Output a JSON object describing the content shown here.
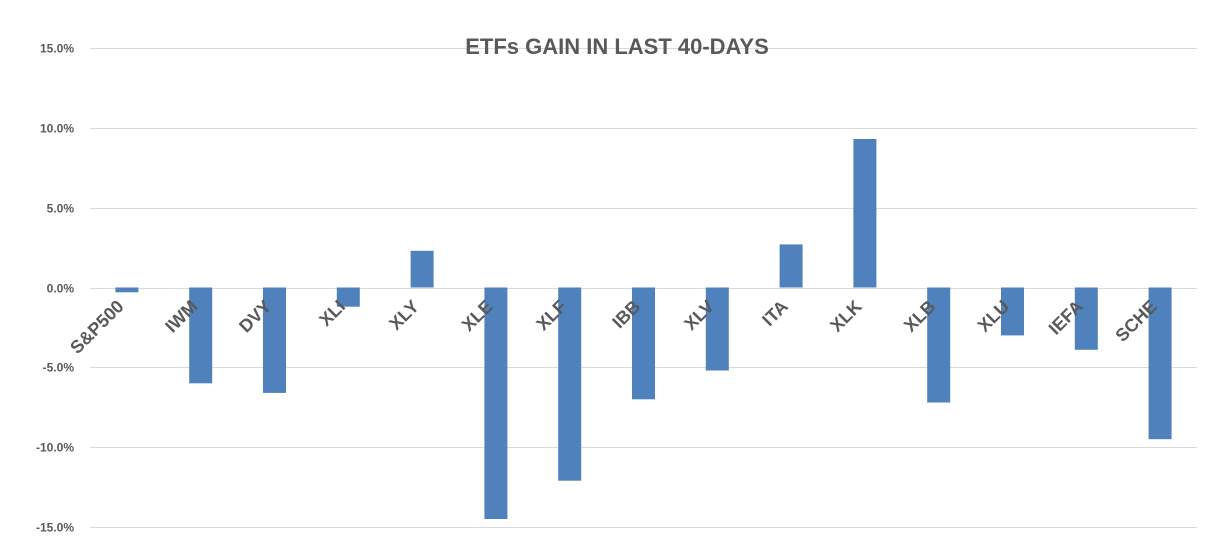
{
  "chart_data": {
    "type": "bar",
    "title": "ETFs GAIN IN LAST 40-DAYS",
    "categories": [
      "S&P500",
      "IWM",
      "DVY",
      "XLI",
      "XLY",
      "XLE",
      "XLF",
      "IBB",
      "XLV",
      "ITA",
      "XLK",
      "XLB",
      "XLU",
      "IEFA",
      "SCHE"
    ],
    "values": [
      -0.3,
      -6.0,
      -6.6,
      -1.2,
      2.3,
      -14.5,
      -12.1,
      -7.0,
      -5.2,
      2.7,
      9.3,
      -7.2,
      -3.0,
      -3.9,
      -9.5
    ],
    "value_unit": "%",
    "ylim": [
      -15,
      15
    ],
    "y_ticks": [
      15,
      10,
      5,
      0,
      -5,
      -10,
      -15
    ],
    "y_tick_labels": [
      "15.0%",
      "10.0%",
      "5.0%",
      "0.0%",
      "-5.0%",
      "-10.0%",
      "-15.0%"
    ],
    "xlabel": "",
    "ylabel": "",
    "grid": true,
    "legend": "none",
    "category_label_rotation": "diagonal",
    "colors": {
      "bar": "#4f81bd",
      "grid": "#d9d9d9",
      "text": "#595959"
    }
  }
}
